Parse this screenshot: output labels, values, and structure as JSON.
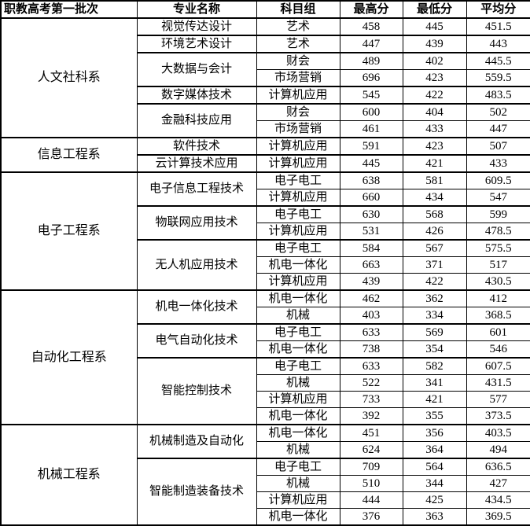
{
  "table": {
    "headers": [
      "职教高考第一批次",
      "专业名称",
      "科目组",
      "最高分",
      "最低分",
      "平均分"
    ],
    "departments": [
      {
        "name": "人文社科系",
        "majors": [
          {
            "name": "视觉传达设计",
            "rows": [
              {
                "group": "艺术",
                "max": "458",
                "min": "445",
                "avg": "451.5"
              }
            ]
          },
          {
            "name": "环境艺术设计",
            "rows": [
              {
                "group": "艺术",
                "max": "447",
                "min": "439",
                "avg": "443"
              }
            ]
          },
          {
            "name": "大数据与会计",
            "rows": [
              {
                "group": "财会",
                "max": "489",
                "min": "402",
                "avg": "445.5"
              },
              {
                "group": "市场营销",
                "max": "696",
                "min": "423",
                "avg": "559.5"
              }
            ]
          },
          {
            "name": "数字媒体技术",
            "rows": [
              {
                "group": "计算机应用",
                "max": "545",
                "min": "422",
                "avg": "483.5"
              }
            ]
          },
          {
            "name": "金融科技应用",
            "rows": [
              {
                "group": "财会",
                "max": "600",
                "min": "404",
                "avg": "502"
              },
              {
                "group": "市场营销",
                "max": "461",
                "min": "433",
                "avg": "447"
              }
            ]
          }
        ]
      },
      {
        "name": "信息工程系",
        "majors": [
          {
            "name": "软件技术",
            "rows": [
              {
                "group": "计算机应用",
                "max": "591",
                "min": "423",
                "avg": "507"
              }
            ]
          },
          {
            "name": "云计算技术应用",
            "rows": [
              {
                "group": "计算机应用",
                "max": "445",
                "min": "421",
                "avg": "433"
              }
            ]
          }
        ]
      },
      {
        "name": "电子工程系",
        "majors": [
          {
            "name": "电子信息工程技术",
            "rows": [
              {
                "group": "电子电工",
                "max": "638",
                "min": "581",
                "avg": "609.5"
              },
              {
                "group": "计算机应用",
                "max": "660",
                "min": "434",
                "avg": "547"
              }
            ]
          },
          {
            "name": "物联网应用技术",
            "rows": [
              {
                "group": "电子电工",
                "max": "630",
                "min": "568",
                "avg": "599"
              },
              {
                "group": "计算机应用",
                "max": "531",
                "min": "426",
                "avg": "478.5"
              }
            ]
          },
          {
            "name": "无人机应用技术",
            "rows": [
              {
                "group": "电子电工",
                "max": "584",
                "min": "567",
                "avg": "575.5"
              },
              {
                "group": "机电一体化",
                "max": "663",
                "min": "371",
                "avg": "517"
              },
              {
                "group": "计算机应用",
                "max": "439",
                "min": "422",
                "avg": "430.5"
              }
            ]
          }
        ]
      },
      {
        "name": "自动化工程系",
        "majors": [
          {
            "name": "机电一体化技术",
            "rows": [
              {
                "group": "机电一体化",
                "max": "462",
                "min": "362",
                "avg": "412"
              },
              {
                "group": "机械",
                "max": "403",
                "min": "334",
                "avg": "368.5"
              }
            ]
          },
          {
            "name": "电气自动化技术",
            "rows": [
              {
                "group": "电子电工",
                "max": "633",
                "min": "569",
                "avg": "601"
              },
              {
                "group": "机电一体化",
                "max": "738",
                "min": "354",
                "avg": "546"
              }
            ]
          },
          {
            "name": "智能控制技术",
            "rows": [
              {
                "group": "电子电工",
                "max": "633",
                "min": "582",
                "avg": "607.5"
              },
              {
                "group": "机械",
                "max": "522",
                "min": "341",
                "avg": "431.5"
              },
              {
                "group": "计算机应用",
                "max": "733",
                "min": "421",
                "avg": "577"
              },
              {
                "group": "机电一体化",
                "max": "392",
                "min": "355",
                "avg": "373.5"
              }
            ]
          }
        ]
      },
      {
        "name": "机械工程系",
        "majors": [
          {
            "name": "机械制造及自动化",
            "rows": [
              {
                "group": "机电一体化",
                "max": "451",
                "min": "356",
                "avg": "403.5"
              },
              {
                "group": "机械",
                "max": "624",
                "min": "364",
                "avg": "494"
              }
            ]
          },
          {
            "name": "智能制造装备技术",
            "rows": [
              {
                "group": "电子电工",
                "max": "709",
                "min": "564",
                "avg": "636.5"
              },
              {
                "group": "机械",
                "max": "510",
                "min": "344",
                "avg": "427"
              },
              {
                "group": "计算机应用",
                "max": "444",
                "min": "425",
                "avg": "434.5"
              },
              {
                "group": "机电一体化",
                "max": "376",
                "min": "363",
                "avg": "369.5"
              }
            ]
          }
        ]
      }
    ]
  },
  "colors": {
    "text": "#000000",
    "border": "#000000",
    "background": "#ffffff"
  }
}
